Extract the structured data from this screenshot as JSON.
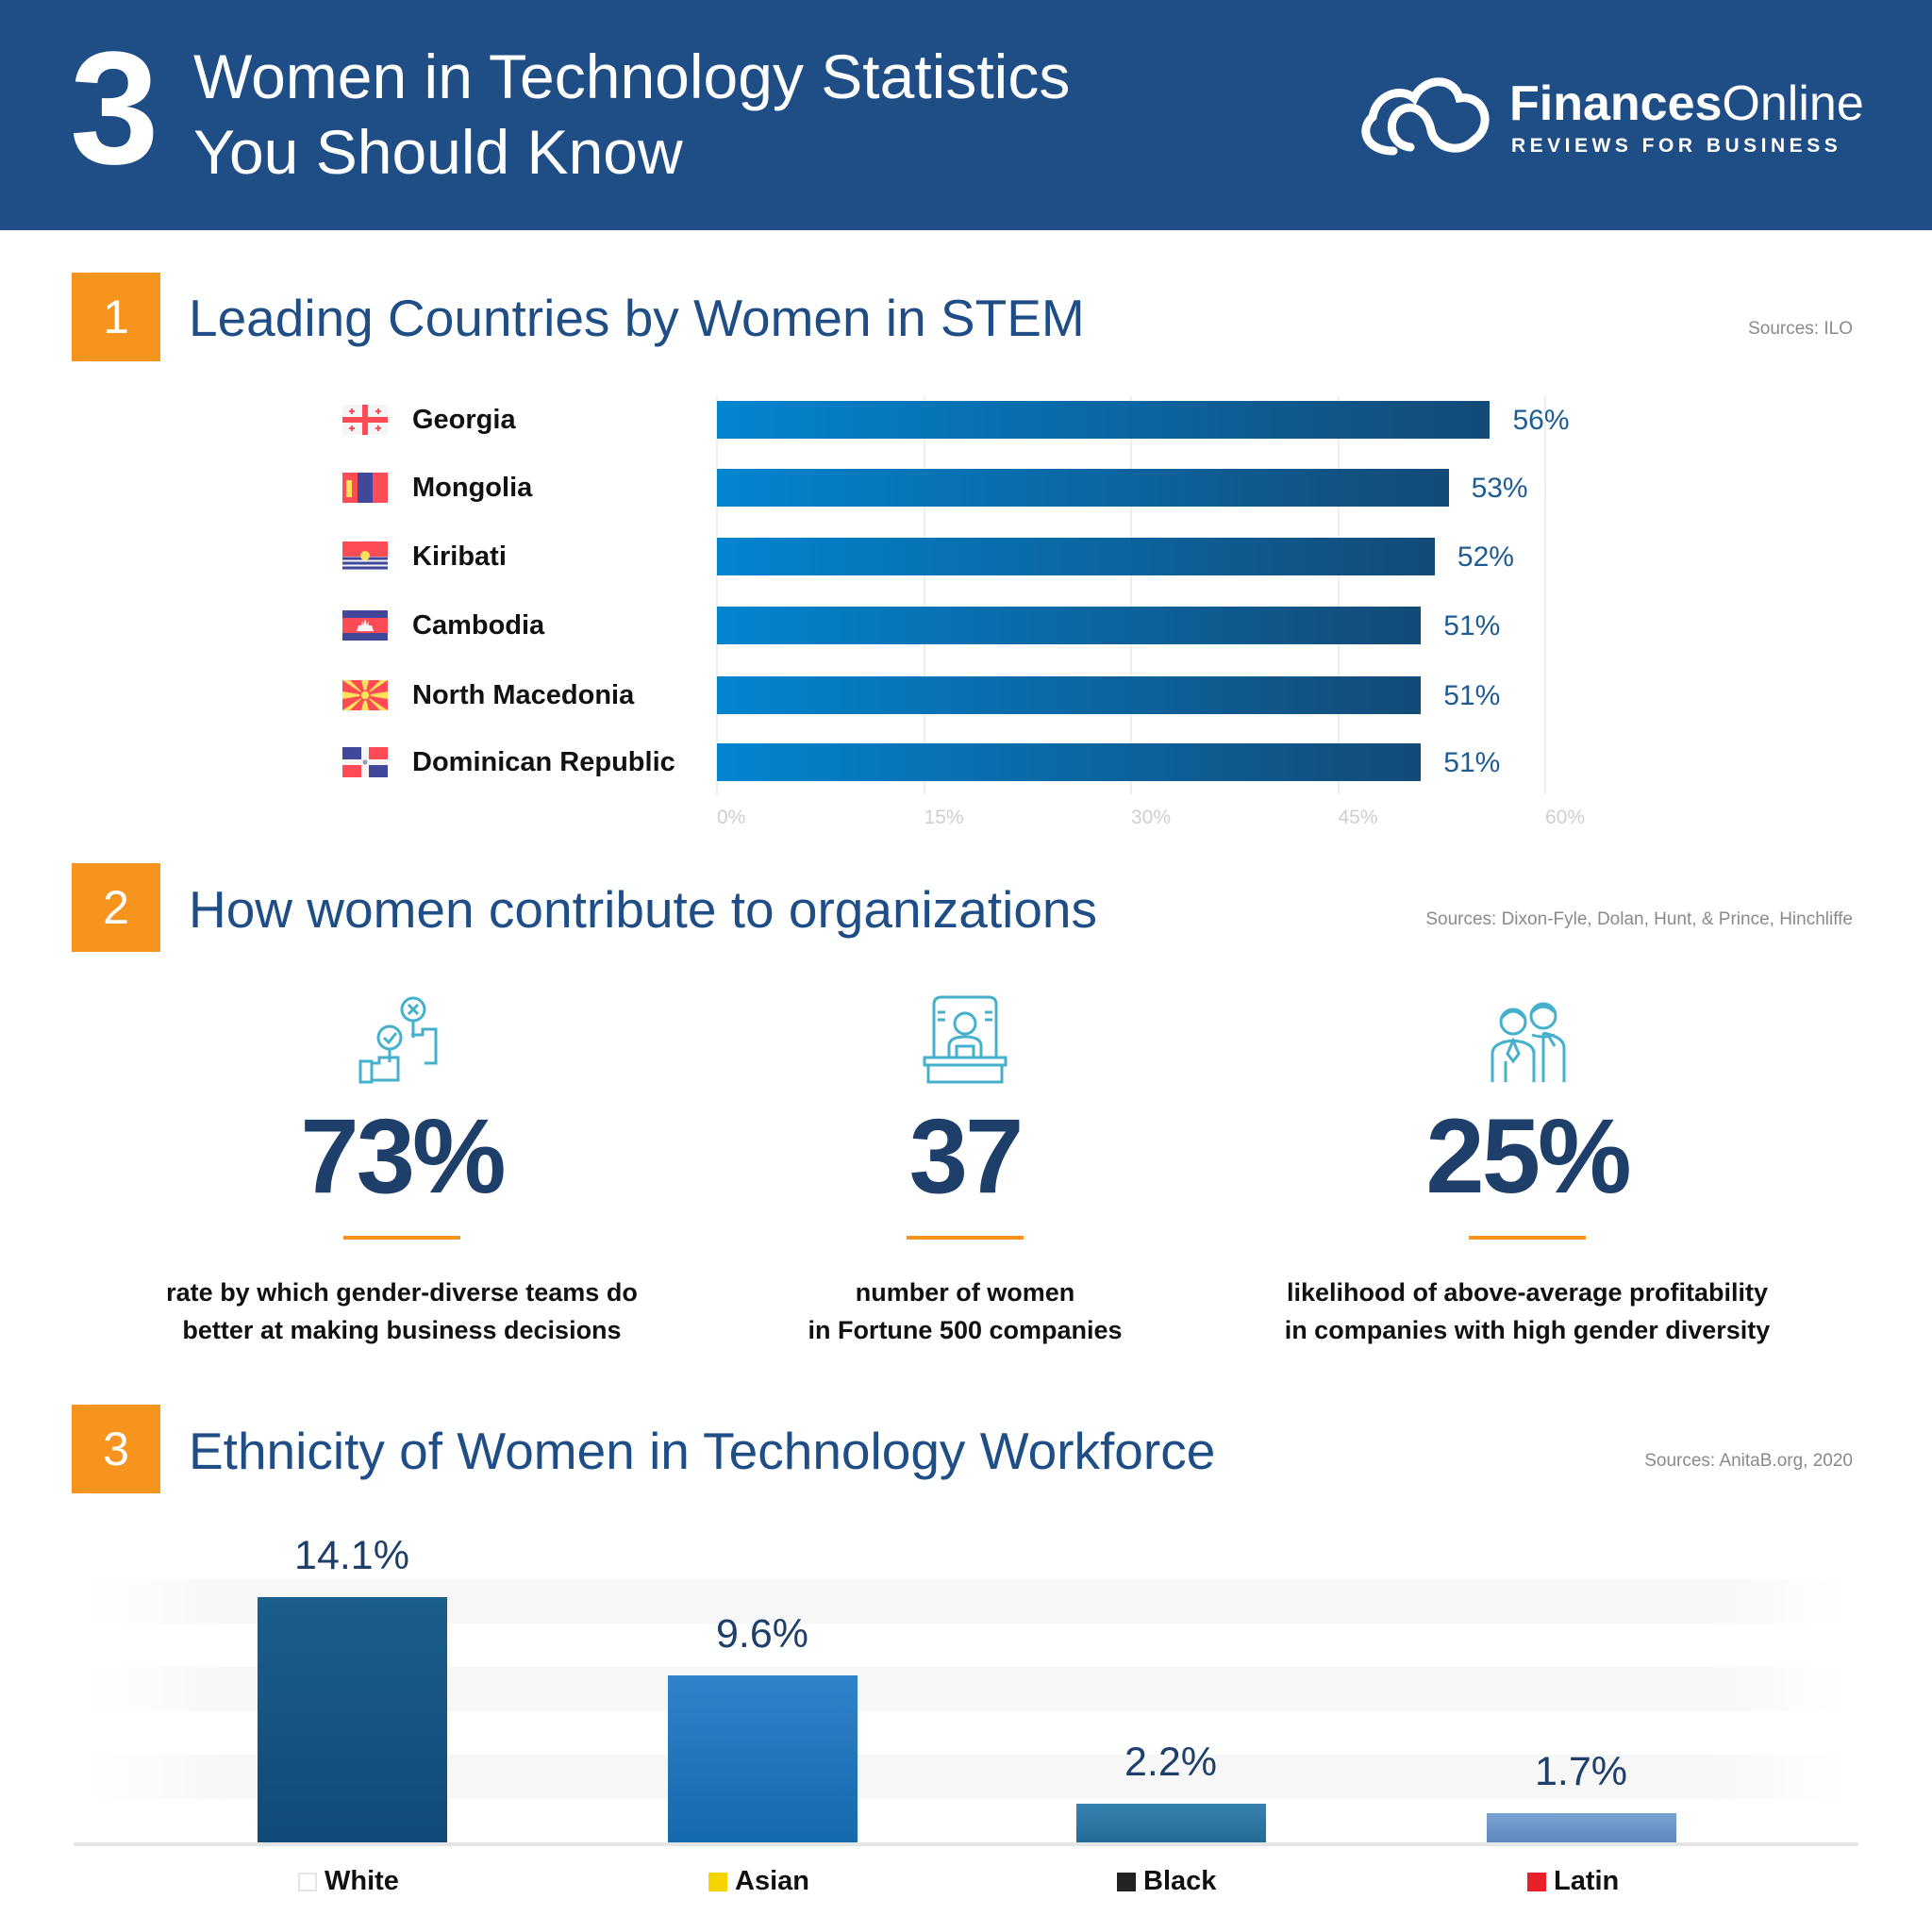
{
  "header": {
    "number": "3",
    "title_line1": "Women in Technology Statistics",
    "title_line2": "You Should Know",
    "logo_bold": "Finances",
    "logo_light": "Online",
    "logo_tagline": "REVIEWS FOR BUSINESS",
    "background": "#1f4e87"
  },
  "section1": {
    "badge": "1",
    "title": "Leading Countries by Women in STEM",
    "sources": "Sources: ILO"
  },
  "section2": {
    "badge": "2",
    "title": "How women contribute to organizations",
    "sources": "Sources: Dixon-Fyle, Dolan, Hunt, & Prince, Hinchliffe",
    "stats": [
      {
        "icon": "voting-hands-icon",
        "value": "73%",
        "desc1": "rate by which gender-diverse teams do",
        "desc2": "better at making business decisions"
      },
      {
        "icon": "woman-at-podium-icon",
        "value": "37",
        "desc1": "number of women",
        "desc2": "in Fortune 500 companies"
      },
      {
        "icon": "business-people-icon",
        "value": "25%",
        "desc1": "likelihood of above-average profitability",
        "desc2": "in companies with high gender diversity"
      }
    ]
  },
  "section3": {
    "badge": "3",
    "title": "Ethnicity of Women in Technology Workforce",
    "sources": "Sources: AnitaB.org, 2020"
  },
  "accent": "#f7941d",
  "chart_data": [
    {
      "type": "bar",
      "orientation": "horizontal",
      "categories": [
        "Georgia",
        "Mongolia",
        "Kiribati",
        "Cambodia",
        "North Macedonia",
        "Dominican Republic"
      ],
      "flags": [
        "georgia-flag-icon",
        "mongolia-flag-icon",
        "kiribati-flag-icon",
        "cambodia-flag-icon",
        "north-macedonia-flag-icon",
        "dominican-republic-flag-icon"
      ],
      "values": [
        56,
        53,
        52,
        51,
        51,
        51
      ],
      "labels": [
        "56%",
        "53%",
        "52%",
        "51%",
        "51%",
        "51%"
      ],
      "xlim": [
        0,
        60
      ],
      "xticks": [
        "0%",
        "15%",
        "30%",
        "45%",
        "60%"
      ],
      "grid": true,
      "bar_color_start": "#0285d0",
      "bar_color_end": "#134a77"
    },
    {
      "type": "bar",
      "categories": [
        "White",
        "Asian",
        "Black",
        "Latin"
      ],
      "values": [
        14.1,
        9.6,
        2.2,
        1.7
      ],
      "labels": [
        "14.1%",
        "9.6%",
        "2.2%",
        "1.7%"
      ],
      "legend_colors": [
        "#ffffff",
        "#f5d400",
        "#222222",
        "#e8202a"
      ],
      "bar_colors": [
        [
          "#1a5e8e",
          "#124a78"
        ],
        [
          "#3282c9",
          "#1569ad"
        ],
        [
          "#3883b0",
          "#226c96"
        ],
        [
          "#79a2d1",
          "#5d89bf"
        ]
      ],
      "legend": "bottom"
    }
  ]
}
